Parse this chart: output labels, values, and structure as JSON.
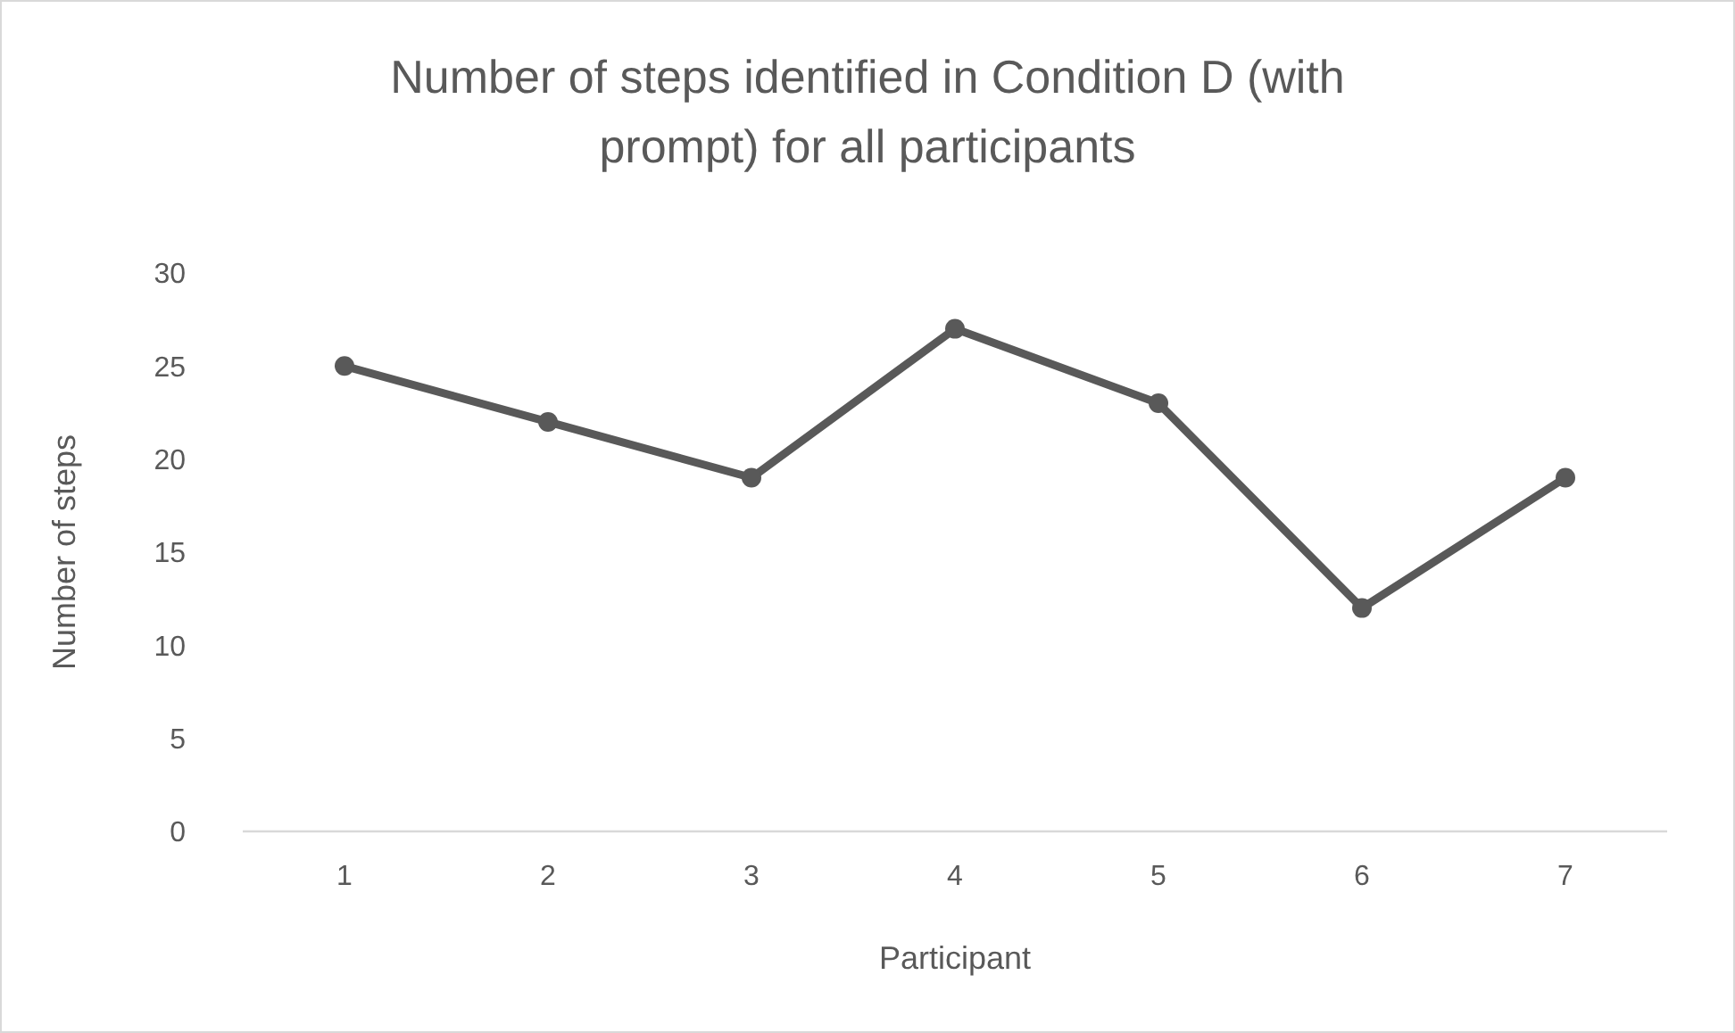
{
  "chart_data": {
    "type": "line",
    "title": "Number of steps identified in Condition D (with prompt) for all participants",
    "xlabel": "Participant",
    "ylabel": "Number of steps",
    "categories": [
      "1",
      "2",
      "3",
      "4",
      "5",
      "6",
      "7"
    ],
    "series": [
      {
        "color": "#595959",
        "values": [
          25,
          22,
          19,
          27,
          23,
          12,
          19
        ]
      }
    ],
    "ylim": [
      0,
      30
    ],
    "yticks": [
      0,
      5,
      10,
      15,
      20,
      25,
      30
    ],
    "grid": false,
    "marker": "circle",
    "line_style": "solid"
  }
}
